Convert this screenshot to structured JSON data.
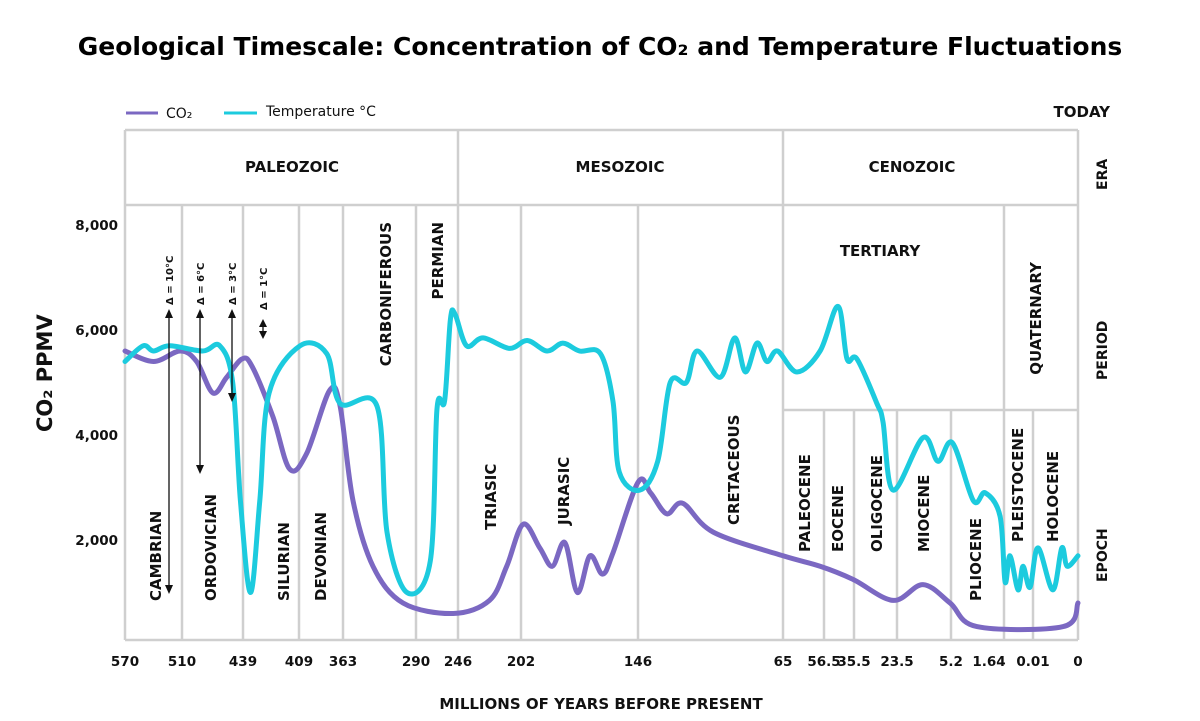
{
  "chart_data": {
    "type": "line",
    "title": "Geological Timescale: Concentration of CO₂ and Temperature Fluctuations",
    "xlabel": "MILLIONS OF YEARS BEFORE PRESENT",
    "ylabel": "CO₂ PPMV",
    "today_label": "TODAY",
    "x_ticks": [
      "570",
      "510",
      "439",
      "409",
      "363",
      "290",
      "246",
      "202",
      "146",
      "65",
      "56.5",
      "35.5",
      "23.5",
      "5.2",
      "1.64",
      "0.01",
      "0"
    ],
    "x_axis_note": "non-uniform spacing between labelled boundaries",
    "y_ticks": [
      "8,000",
      "6,000",
      "4,000",
      "2,000"
    ],
    "ylim": [
      0,
      8000
    ],
    "grid": true,
    "legend_position": "top-left",
    "row_labels": {
      "era": "ERA",
      "period": "PERIOD",
      "epoch": "EPOCH"
    },
    "eras": [
      "PALEOZOIC",
      "MESOZOIC",
      "CENOZOIC"
    ],
    "periods": [
      "CAMBRIAN",
      "ORDOVICIAN",
      "SILURIAN",
      "DEVONIAN",
      "CARBONIFEROUS",
      "PERMIAN",
      "TRIASIC",
      "JURASIC",
      "CRETACEOUS",
      "TERTIARY",
      "QUATERNARY"
    ],
    "epochs": [
      "PALEOCENE",
      "EOCENE",
      "OLIGOCENE",
      "MIOCENE",
      "PLIOCENE",
      "PLEISTOCENE",
      "HOLOCENE"
    ],
    "annotations": [
      "Δ = 10°C",
      "Δ = 6°C",
      "Δ = 3°C",
      "Δ = 1°C"
    ],
    "series": [
      {
        "name": "CO₂",
        "color": "#7b68c2",
        "points": [
          [
            570,
            5600
          ],
          [
            540,
            5400
          ],
          [
            512,
            5600
          ],
          [
            493,
            5400
          ],
          [
            474,
            4800
          ],
          [
            458,
            5100
          ],
          [
            440,
            5450
          ],
          [
            434,
            5300
          ],
          [
            423,
            4350
          ],
          [
            414,
            3350
          ],
          [
            401,
            3650
          ],
          [
            377,
            4850
          ],
          [
            366,
            4550
          ],
          [
            353,
            2750
          ],
          [
            333,
            1500
          ],
          [
            303,
            800
          ],
          [
            251,
            600
          ],
          [
            224,
            850
          ],
          [
            212,
            1500
          ],
          [
            201,
            2300
          ],
          [
            193,
            1850
          ],
          [
            187,
            1500
          ],
          [
            181,
            1950
          ],
          [
            175,
            1000
          ],
          [
            169,
            1700
          ],
          [
            163,
            1350
          ],
          [
            158,
            1750
          ],
          [
            146,
            3100
          ],
          [
            139,
            2900
          ],
          [
            130,
            2500
          ],
          [
            121,
            2700
          ],
          [
            104,
            2150
          ],
          [
            65,
            1700
          ],
          [
            57.3,
            1500
          ],
          [
            36.2,
            1250
          ],
          [
            24.6,
            850
          ],
          [
            14.7,
            1150
          ],
          [
            5.5,
            800
          ],
          [
            3.46,
            350
          ],
          [
            0.0033,
            350
          ],
          [
            0,
            800
          ]
        ]
      },
      {
        "name": "Temperature °C",
        "color": "#1ccbde",
        "points": [
          [
            570,
            5400
          ],
          [
            551,
            5700
          ],
          [
            540,
            5600
          ],
          [
            523,
            5700
          ],
          [
            486,
            5600
          ],
          [
            466,
            5700
          ],
          [
            451,
            5000
          ],
          [
            442,
            2750
          ],
          [
            435,
            1000
          ],
          [
            430,
            2750
          ],
          [
            425,
            4800
          ],
          [
            408,
            5700
          ],
          [
            380,
            5550
          ],
          [
            366,
            4600
          ],
          [
            329,
            4550
          ],
          [
            319,
            2150
          ],
          [
            299,
            1000
          ],
          [
            275,
            1600
          ],
          [
            268,
            4500
          ],
          [
            260,
            4650
          ],
          [
            254,
            6200
          ],
          [
            249,
            6300
          ],
          [
            240,
            5700
          ],
          [
            228.5,
            5850
          ],
          [
            210,
            5650
          ],
          [
            199,
            5800
          ],
          [
            189.5,
            5600
          ],
          [
            182,
            5750
          ],
          [
            174,
            5600
          ],
          [
            164,
            5550
          ],
          [
            158,
            4650
          ],
          [
            155,
            3300
          ],
          [
            145,
            2950
          ],
          [
            135,
            3500
          ],
          [
            128,
            5000
          ],
          [
            119,
            5000
          ],
          [
            113,
            5600
          ],
          [
            100,
            5100
          ],
          [
            92,
            5850
          ],
          [
            86,
            5200
          ],
          [
            79.5,
            5750
          ],
          [
            74,
            5400
          ],
          [
            68,
            5600
          ],
          [
            62.1,
            5200
          ],
          [
            57.3,
            5600
          ],
          [
            46.7,
            6450
          ],
          [
            40.4,
            5450
          ],
          [
            34.7,
            5450
          ],
          [
            29.1,
            4600
          ],
          [
            27.4,
            4250
          ],
          [
            24.6,
            2950
          ],
          [
            14.7,
            3950
          ],
          [
            9.6,
            3500
          ],
          [
            5.1,
            3850
          ],
          [
            3.7,
            2750
          ],
          [
            2.9,
            2900
          ],
          [
            1.9,
            2450
          ],
          [
            1.58,
            1200
          ],
          [
            1.3,
            1700
          ],
          [
            0.85,
            1050
          ],
          [
            0.57,
            1500
          ],
          [
            0.18,
            1100
          ],
          [
            0.0089,
            1850
          ],
          [
            0.0056,
            1050
          ],
          [
            0.0036,
            1850
          ],
          [
            0.0024,
            1500
          ],
          [
            0,
            1700
          ]
        ]
      }
    ]
  }
}
